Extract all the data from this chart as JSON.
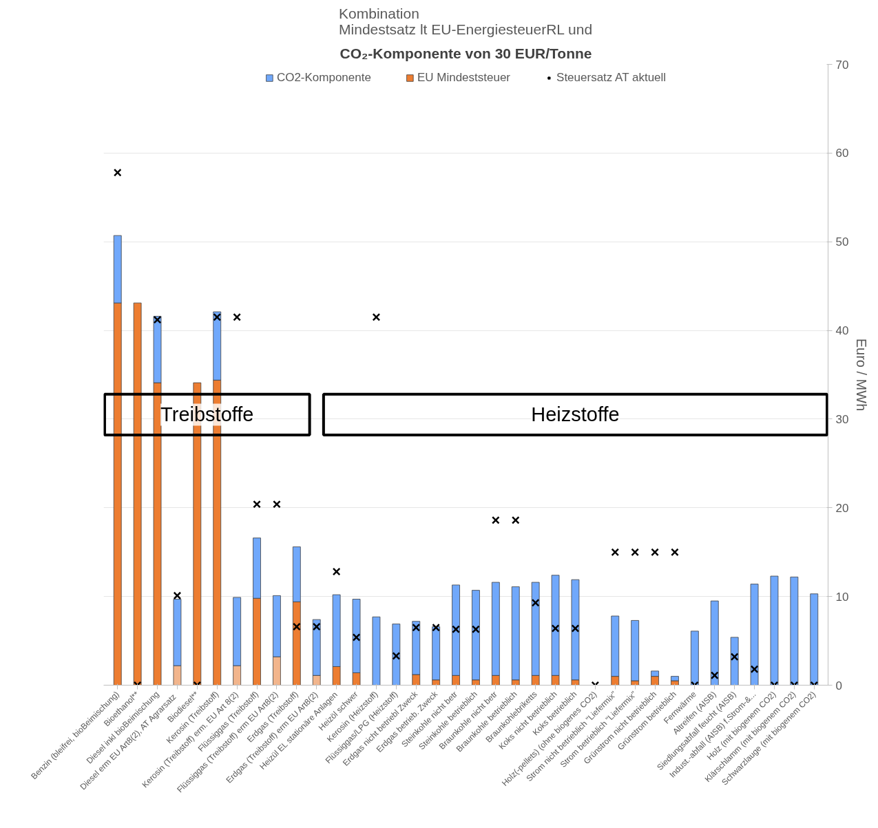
{
  "chart_data": {
    "type": "bar",
    "stacked": true,
    "title": "Kombination\nMindestsatz lt EU-EnergiesteuerRL und",
    "subtitle": "CO₂-Komponente von 30 EUR/Tonne",
    "ylabel": "Euro / MWh",
    "categories": [
      "Benzin (bleifrei, bioBeimischung)",
      "Bioethanol**",
      "Diesel inkl bioBeimischung",
      "Diesel  erm EU Art8(2), AT Agrarsatz",
      "Biodiesel**",
      "Kerosin (Treibstoff)",
      "Kerosin (Treibstoff) erm. EU Art 8(2)",
      "Flüssiggas (Treibstoff)",
      "Flüssiggas (Treibstoff) erm EU Art8(2)",
      "Erdgas (Treibstoff)",
      "Erdgas (Treibstoff) erm EU Art8(2)",
      "Heizül EL stationäre Anlagen",
      "Heizöl schwer",
      "Kerosin (Heizstoff)",
      "Flüssiggas/LPG (Heizstoff)",
      "Erdgas nicht betriebl Zweck",
      "Erdgas betrieb. Zweck",
      "Steinkohle nicht betr",
      "Steinkohle betrieblich",
      "Braunkohle nicht betr",
      "Braunkohle betrieblich",
      "Braunkohlebriketts",
      "Koks nicht betrieblich",
      "Koks betrieblich",
      "Holz(-pellets) (ohne biogenes CO2)",
      "Strom nicht betrieblich \"Liefermix\"",
      "Strom betrieblich \"Liefermix\"",
      "Grünstrom nicht betrieblich",
      "Grünstrom betrieblich",
      "Fernwärme",
      "Altreifen (AISB)",
      "Siedlungsabfall feucht (AISB)",
      "Indust.-abfall (AISB) f.Strom-&...",
      "Holz (mit biogenem CO2)",
      "Klärschlamm (mit biogenem CO2)",
      "Schwarzlauge (mit biogenem CO2)"
    ],
    "series": [
      {
        "name": "EU Mindeststeuer",
        "color": "#ed7d31",
        "colors": [
          "#ed7d31",
          "#ed7d31",
          "#ed7d31",
          "#f2b58c",
          "#ed7d31",
          "#ed7d31",
          "#f2b58c",
          "#ed7d31",
          "#f2b58c",
          "#ed7d31",
          "#f2b58c",
          "#ed7d31",
          "#ed7d31",
          "#ed7d31",
          "#ed7d31",
          "#ed7d31",
          "#ed7d31",
          "#ed7d31",
          "#ed7d31",
          "#ed7d31",
          "#ed7d31",
          "#ed7d31",
          "#ed7d31",
          "#ed7d31",
          "#ed7d31",
          "#ed7d31",
          "#ed7d31",
          "#ed7d31",
          "#ed7d31",
          "#ed7d31",
          "#ed7d31",
          "#ed7d31",
          "#ed7d31",
          "#ed7d31",
          "#ed7d31",
          "#ed7d31"
        ],
        "values": [
          43.1,
          43.1,
          34.1,
          2.2,
          34.1,
          34.4,
          2.2,
          9.8,
          3.2,
          9.4,
          1.1,
          2.1,
          1.4,
          0,
          0,
          1.2,
          0.6,
          1.1,
          0.6,
          1.1,
          0.6,
          1.1,
          1.1,
          0.6,
          0,
          1.0,
          0.5,
          1.0,
          0.5,
          0,
          0,
          0,
          0,
          0,
          0,
          0
        ]
      },
      {
        "name": "CO2-Komponente",
        "color": "#70a8fb",
        "values": [
          7.6,
          0,
          7.5,
          7.5,
          0,
          7.7,
          7.7,
          6.8,
          6.9,
          6.2,
          6.3,
          8.1,
          8.3,
          7.7,
          6.9,
          6.0,
          6.0,
          10.2,
          10.1,
          10.5,
          10.5,
          10.5,
          11.3,
          11.3,
          0,
          6.8,
          6.8,
          0.6,
          0.5,
          6.1,
          9.5,
          5.4,
          11.4,
          12.3,
          12.2,
          10.3
        ]
      },
      {
        "name": "Steuersatz AT aktuell",
        "type": "scatter",
        "marker": "cross",
        "color": "#000000",
        "values": [
          57.8,
          0,
          41.2,
          10.1,
          0,
          41.5,
          41.5,
          20.4,
          20.4,
          6.6,
          6.6,
          12.8,
          5.4,
          41.5,
          3.3,
          6.5,
          6.5,
          6.3,
          6.3,
          18.6,
          18.6,
          9.3,
          6.4,
          6.4,
          0,
          15.0,
          15.0,
          15.0,
          15.0,
          0,
          1.1,
          3.2,
          1.8,
          0,
          0,
          0
        ]
      }
    ],
    "ylim": [
      0,
      70
    ],
    "yticks": [
      0,
      10,
      20,
      30,
      40,
      50,
      60,
      70
    ],
    "grid": "y",
    "legend": "top center",
    "annotations": [
      "Treibstoffe",
      "Heizstoffe"
    ]
  }
}
